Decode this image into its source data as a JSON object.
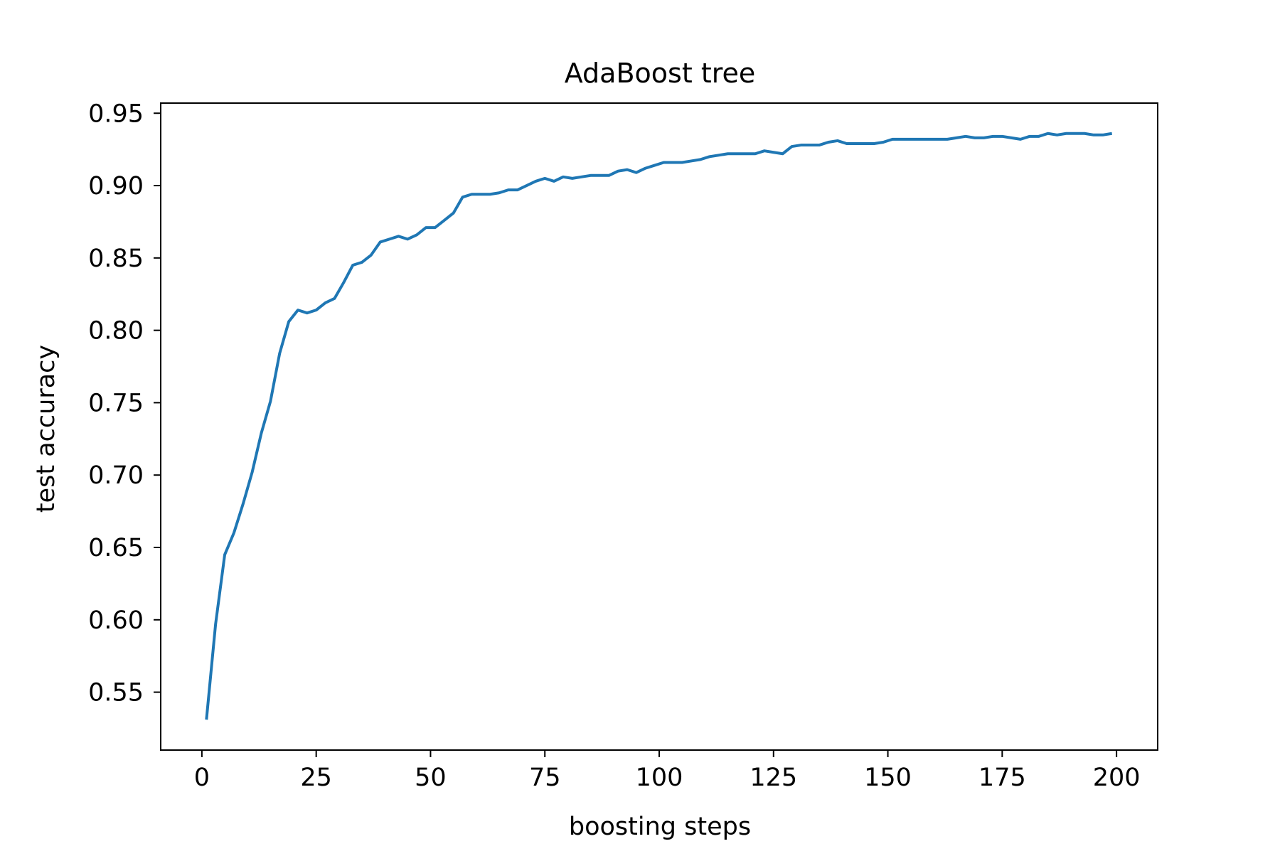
{
  "chart_data": {
    "type": "line",
    "title": "AdaBoost tree",
    "xlabel": "boosting steps",
    "ylabel": "test accuracy",
    "xlim": [
      -9,
      209
    ],
    "ylim": [
      0.51,
      0.957
    ],
    "xticks": [
      0,
      25,
      50,
      75,
      100,
      125,
      150,
      175,
      200
    ],
    "yticks": [
      0.55,
      0.6,
      0.65,
      0.7,
      0.75,
      0.8,
      0.85,
      0.9,
      0.95
    ],
    "grid": false,
    "legend": "none",
    "colors": {
      "line": "#1f77b4",
      "axes": "#000000",
      "background": "#ffffff"
    },
    "series": [
      {
        "x": [
          1,
          3,
          5,
          7,
          9,
          11,
          13,
          15,
          17,
          19,
          21,
          23,
          25,
          27,
          29,
          31,
          33,
          35,
          37,
          39,
          41,
          43,
          45,
          47,
          49,
          51,
          53,
          55,
          57,
          59,
          61,
          63,
          65,
          67,
          69,
          71,
          73,
          75,
          77,
          79,
          81,
          83,
          85,
          87,
          89,
          91,
          93,
          95,
          97,
          99,
          101,
          103,
          105,
          107,
          109,
          111,
          113,
          115,
          117,
          119,
          121,
          123,
          125,
          127,
          129,
          131,
          133,
          135,
          137,
          139,
          141,
          143,
          145,
          147,
          149,
          151,
          153,
          155,
          157,
          159,
          161,
          163,
          165,
          167,
          169,
          171,
          173,
          175,
          177,
          179,
          181,
          183,
          185,
          187,
          189,
          191,
          193,
          195,
          197,
          199
        ],
        "values": [
          0.531,
          0.597,
          0.645,
          0.66,
          0.68,
          0.702,
          0.729,
          0.751,
          0.784,
          0.806,
          0.814,
          0.812,
          0.814,
          0.819,
          0.822,
          0.833,
          0.845,
          0.847,
          0.852,
          0.861,
          0.863,
          0.865,
          0.863,
          0.866,
          0.871,
          0.871,
          0.876,
          0.881,
          0.892,
          0.894,
          0.894,
          0.894,
          0.895,
          0.897,
          0.897,
          0.9,
          0.903,
          0.905,
          0.903,
          0.906,
          0.905,
          0.906,
          0.907,
          0.907,
          0.907,
          0.91,
          0.911,
          0.909,
          0.912,
          0.914,
          0.916,
          0.916,
          0.916,
          0.917,
          0.918,
          0.92,
          0.921,
          0.922,
          0.922,
          0.922,
          0.922,
          0.924,
          0.923,
          0.922,
          0.927,
          0.928,
          0.928,
          0.928,
          0.93,
          0.931,
          0.929,
          0.929,
          0.929,
          0.929,
          0.93,
          0.932,
          0.932,
          0.932,
          0.932,
          0.932,
          0.932,
          0.932,
          0.933,
          0.934,
          0.933,
          0.933,
          0.934,
          0.934,
          0.933,
          0.932,
          0.934,
          0.934,
          0.936,
          0.935,
          0.936,
          0.936,
          0.936,
          0.935,
          0.935,
          0.936
        ]
      }
    ]
  }
}
